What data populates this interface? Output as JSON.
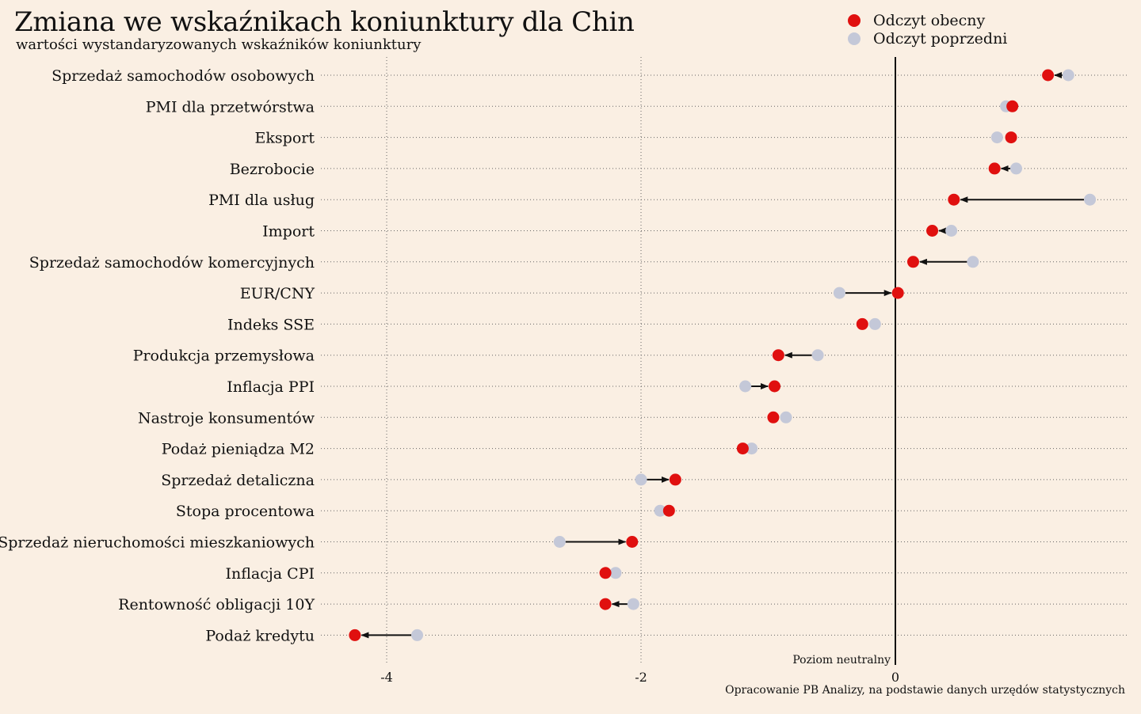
{
  "title": "Zmiana we wskaźnikach koniunktury dla Chin",
  "subtitle": "wartości wystandaryzowanych wskaźników koniunktury",
  "legend": {
    "current": "Odczyt obecny",
    "previous": "Odczyt poprzedni"
  },
  "colors": {
    "current": "#e0100f",
    "previous": "#c4c8d8",
    "background": "#faefe3"
  },
  "source": "Opracowanie PB Analizy, na podstawie danych urzędów statystycznych",
  "neutral_label": "Poziom neutralny",
  "chart_data": {
    "type": "dot-arrow",
    "xlim": [
      -4.45,
      1.8
    ],
    "xticks": [
      -4,
      -2,
      0
    ],
    "xtick_labels": [
      "-4",
      "-2",
      "0"
    ],
    "grid": "dotted",
    "legend_position": "top-right",
    "series": [
      {
        "name": "Odczyt obecny",
        "color": "#e0100f"
      },
      {
        "name": "Odczyt poprzedni",
        "color": "#c4c8d8"
      }
    ],
    "categories": [
      "Sprzedaż samochodów osobowych",
      "PMI dla przetwórstwa",
      "Eksport",
      "Bezrobocie",
      "PMI dla usług",
      "Import",
      "Sprzedaż samochodów komercyjnych",
      "EUR/CNY",
      "Indeks SSE",
      "Produkcja przemysłowa",
      "Inflacja PPI",
      "Nastroje konsumentów",
      "Podaż pieniądza M2",
      "Sprzedaż detaliczna",
      "Stopa procentowa",
      "Sprzedaż nieruchomości mieszkaniowych",
      "Inflacja CPI",
      "Rentowność obligacji 10Y",
      "Podaż kredytu"
    ],
    "current": [
      1.2,
      0.92,
      0.91,
      0.78,
      0.46,
      0.29,
      0.14,
      0.02,
      -0.26,
      -0.92,
      -0.95,
      -0.96,
      -1.2,
      -1.73,
      -1.78,
      -2.07,
      -2.28,
      -2.28,
      -4.25
    ],
    "previous": [
      1.36,
      0.87,
      0.8,
      0.95,
      1.53,
      0.44,
      0.61,
      -0.44,
      -0.16,
      -0.61,
      -1.18,
      -0.86,
      -1.13,
      -2.0,
      -1.85,
      -2.64,
      -2.2,
      -2.06,
      -3.76
    ]
  }
}
